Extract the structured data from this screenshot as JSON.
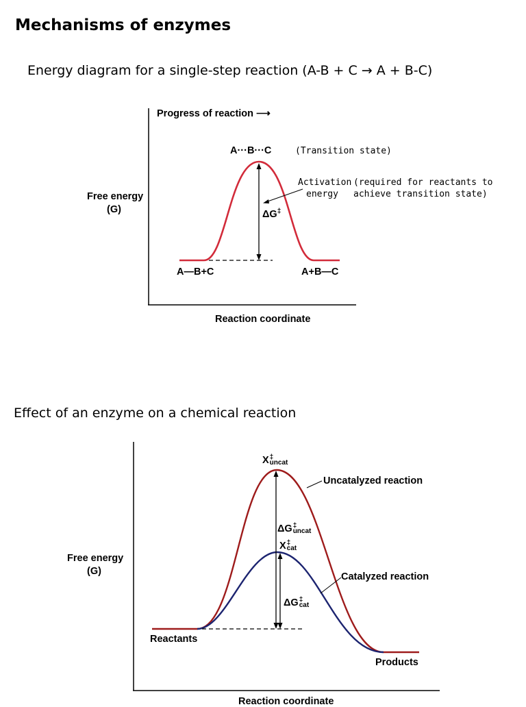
{
  "page": {
    "title": "Mechanisms of enzymes",
    "subtitle1": "Energy diagram for a single-step reaction (A-B + C → A + B-C)",
    "subtitle2": "Effect of an enzyme on a chemical reaction"
  },
  "diagram1": {
    "progress_label": "Progress of reaction ⟶",
    "ts_species": "A···B···C",
    "ts_note": "(Transition state)",
    "activation_line1": "Activation",
    "activation_line2": "energy",
    "activation_note1": "(required for reactants to",
    "activation_note2": "achieve transition state)",
    "delta_g": "ΔG",
    "delta_g_sup": "‡",
    "yaxis_line1": "Free energy",
    "yaxis_line2": "(G)",
    "reactants": "A—B+C",
    "products": "A+B—C",
    "xaxis": "Reaction coordinate",
    "curve_color": "#d22b3a"
  },
  "diagram2": {
    "x_uncat": "X",
    "x_uncat_sup": "‡",
    "x_uncat_sub": "uncat",
    "uncat_label": "Uncatalyzed reaction",
    "dg_uncat": "ΔG",
    "dg_uncat_sup": "‡",
    "dg_uncat_sub": "uncat",
    "x_cat": "X",
    "x_cat_sup": "‡",
    "x_cat_sub": "cat",
    "cat_label": "Catalyzed reaction",
    "dg_cat": "ΔG",
    "dg_cat_sup": "‡",
    "dg_cat_sub": "cat",
    "yaxis_line1": "Free energy",
    "yaxis_line2": "(G)",
    "reactants": "Reactants",
    "products": "Products",
    "xaxis": "Reaction coordinate",
    "uncat_color": "#9e1b1b",
    "cat_color": "#1c2470"
  }
}
